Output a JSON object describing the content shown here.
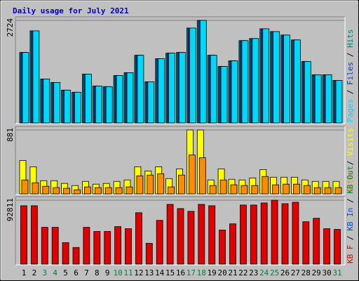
{
  "title": "Daily usage for July 2021",
  "separator": " / ",
  "categories": [
    "1",
    "2",
    "3",
    "4",
    "5",
    "6",
    "7",
    "8",
    "9",
    "10",
    "11",
    "12",
    "13",
    "14",
    "15",
    "16",
    "17",
    "18",
    "19",
    "20",
    "21",
    "22",
    "23",
    "24",
    "25",
    "26",
    "27",
    "28",
    "29",
    "30",
    "31"
  ],
  "highlight_indices": [
    2,
    3,
    9,
    10,
    16,
    17,
    23,
    24,
    30
  ],
  "highlight_color": "#008040",
  "chart_data": [
    {
      "type": "bar",
      "ylim": [
        0,
        2724
      ],
      "yticks": [
        2724
      ],
      "series": [
        {
          "name": "Hits",
          "color": "#008080",
          "values": [
            1872,
            2446,
            1167,
            1075,
            871,
            815,
            1297,
            982,
            964,
            1260,
            1334,
            1797,
            1093,
            1705,
            1853,
            1872,
            2520,
            2724,
            1797,
            1501,
            1649,
            2187,
            2242,
            2502,
            2427,
            2335,
            2205,
            1631,
            1279,
            1279,
            1130
          ]
        },
        {
          "name": "Files",
          "color": "#0040c0",
          "values": [
            1872,
            2446,
            1167,
            1075,
            871,
            815,
            1297,
            982,
            964,
            1260,
            1334,
            1797,
            1093,
            1705,
            1853,
            1872,
            2520,
            2724,
            1797,
            1501,
            1649,
            2187,
            2242,
            2502,
            2427,
            2335,
            2205,
            1631,
            1279,
            1279,
            1130
          ]
        },
        {
          "name": "Pages",
          "color": "#00d8f8",
          "values": [
            1872,
            2446,
            1167,
            1075,
            871,
            815,
            1297,
            982,
            964,
            1260,
            1334,
            1797,
            1093,
            1705,
            1853,
            1872,
            2520,
            2724,
            1797,
            1501,
            1649,
            2187,
            2242,
            2502,
            2427,
            2335,
            2205,
            1631,
            1279,
            1279,
            1130
          ]
        }
      ]
    },
    {
      "type": "bar",
      "ylim": [
        0,
        881
      ],
      "yticks": [
        881
      ],
      "series": [
        {
          "name": "Visits",
          "color": "#ffff00",
          "values": [
            460,
            374,
            182,
            182,
            144,
            115,
            172,
            134,
            144,
            172,
            192,
            374,
            316,
            374,
            211,
            345,
            881,
            881,
            192,
            345,
            201,
            192,
            220,
            335,
            230,
            230,
            230,
            192,
            172,
            172,
            172
          ]
        },
        {
          "name": "Sites",
          "color": "#ff8c00",
          "values": [
            192,
            153,
            105,
            86,
            77,
            57,
            96,
            86,
            86,
            86,
            96,
            249,
            259,
            278,
            96,
            259,
            536,
            498,
            115,
            192,
            125,
            115,
            115,
            240,
            125,
            134,
            134,
            115,
            86,
            86,
            86
          ]
        }
      ]
    },
    {
      "type": "bar",
      "ylim": [
        0,
        92811
      ],
      "yticks": [
        92811
      ],
      "series": [
        {
          "name": "KB Out",
          "color": "#008040"
        },
        {
          "name": "KB In",
          "color": "#0050d0"
        },
        {
          "name": "KB F",
          "color": "#e00000",
          "values": [
            84756,
            84756,
            53477,
            53477,
            31279,
            24216,
            53477,
            47423,
            47423,
            54486,
            51459,
            74666,
            30270,
            63567,
            86774,
            80720,
            76684,
            86774,
            84756,
            49441,
            58522,
            85765,
            85765,
            88792,
            92811,
            87783,
            89801,
            61549,
            66594,
            51459,
            50450
          ]
        }
      ]
    }
  ]
}
